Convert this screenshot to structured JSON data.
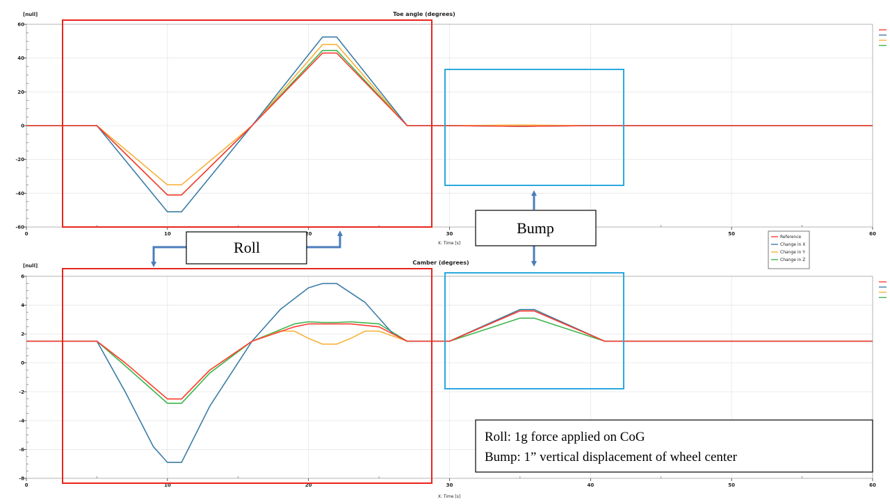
{
  "annotations": {
    "roll_label": "Roll",
    "bump_label": "Bump",
    "note_line1": "Roll:  1g force applied on CoG",
    "note_line2": "Bump: 1” vertical  displacement of wheel center"
  },
  "legend": {
    "items": [
      "Reference",
      "Change in X",
      "Change in Y",
      "Change in Z"
    ]
  },
  "colors": {
    "reference": "#ff3b2f",
    "change_x": "#3a7ca5",
    "change_y": "#f7b13a",
    "change_z": "#3cb44b",
    "roll_box": "#e8231b",
    "bump_box": "#29a8df",
    "arrow": "#4a7ebb"
  },
  "chart_data": [
    {
      "type": "line",
      "title": "Toe angle (degrees)",
      "ylabel": "[null]",
      "xlabel": "X: Time [s]",
      "xlim": [
        0,
        60
      ],
      "ylim": [
        -60,
        60
      ],
      "xticks": [
        0,
        10,
        20,
        30,
        40,
        50,
        60
      ],
      "yticks": [
        -60,
        -40,
        -20,
        0,
        20,
        40,
        60
      ],
      "grid": true,
      "legend_position": "top-right",
      "series": [
        {
          "name": "Reference",
          "color_key": "reference",
          "x": [
            0,
            5,
            10,
            11,
            16,
            21,
            22,
            27,
            30,
            35,
            40,
            60
          ],
          "y": [
            0,
            0,
            -41,
            -41,
            0,
            43,
            43,
            0,
            0,
            -0.4,
            0,
            0
          ]
        },
        {
          "name": "Change in X",
          "color_key": "change_x",
          "x": [
            0,
            5,
            10,
            11,
            16,
            21,
            22,
            27,
            30,
            35,
            40,
            60
          ],
          "y": [
            0,
            0,
            -51,
            -51,
            0,
            52.5,
            52.5,
            0,
            0,
            -0.4,
            0,
            0
          ]
        },
        {
          "name": "Change in Y",
          "color_key": "change_y",
          "x": [
            0,
            5,
            10,
            11,
            16,
            21,
            22,
            27,
            30,
            35,
            40,
            60
          ],
          "y": [
            0,
            0,
            -35,
            -35,
            0,
            48,
            48,
            0,
            0,
            0.4,
            0,
            0
          ]
        },
        {
          "name": "Change in Z",
          "color_key": "change_z",
          "x": [
            0,
            5,
            10,
            11,
            16,
            21,
            22,
            27,
            30,
            35,
            40,
            60
          ],
          "y": [
            0,
            0,
            -41,
            -41,
            0,
            44.5,
            44.5,
            0,
            0,
            -0.4,
            0,
            0
          ]
        }
      ]
    },
    {
      "type": "line",
      "title": "Camber (degrees)",
      "ylabel": "[null]",
      "xlabel": "X: Time [s]",
      "xlim": [
        0,
        60
      ],
      "ylim": [
        -8,
        6
      ],
      "xticks": [
        0,
        10,
        20,
        30,
        40,
        50,
        60
      ],
      "yticks": [
        -8,
        -6,
        -4,
        -2,
        0,
        2,
        4,
        6
      ],
      "grid": true,
      "legend_position": "top-right",
      "series": [
        {
          "name": "Reference",
          "color_key": "reference",
          "x": [
            0,
            5,
            7,
            10,
            11,
            13,
            16,
            19,
            20,
            21,
            22,
            23,
            25,
            27,
            30,
            35,
            36,
            41,
            60
          ],
          "y": [
            1.5,
            1.5,
            0,
            -2.5,
            -2.5,
            -0.5,
            1.5,
            2.5,
            2.7,
            2.7,
            2.7,
            2.7,
            2.5,
            1.5,
            1.5,
            3.6,
            3.6,
            1.5,
            1.5
          ]
        },
        {
          "name": "Change in X",
          "color_key": "change_x",
          "x": [
            0,
            5,
            7,
            9,
            10,
            11,
            13,
            16,
            18,
            20,
            21,
            22,
            24,
            26,
            27,
            30,
            35,
            36,
            41,
            60
          ],
          "y": [
            1.5,
            1.5,
            -2,
            -5.8,
            -6.9,
            -6.9,
            -3,
            1.5,
            3.7,
            5.2,
            5.5,
            5.5,
            4.2,
            2,
            1.5,
            1.5,
            3.7,
            3.7,
            1.5,
            1.5
          ]
        },
        {
          "name": "Change in Y",
          "color_key": "change_y",
          "x": [
            0,
            5,
            7,
            10,
            11,
            13,
            16,
            18,
            19,
            20,
            21,
            22,
            23,
            24,
            25,
            27,
            30,
            35,
            36,
            41,
            60
          ],
          "y": [
            1.5,
            1.5,
            0,
            -2.5,
            -2.5,
            -0.5,
            1.5,
            2.2,
            2.2,
            1.7,
            1.3,
            1.3,
            1.7,
            2.2,
            2.2,
            1.5,
            1.5,
            3.7,
            3.7,
            1.5,
            1.5
          ]
        },
        {
          "name": "Change in Z",
          "color_key": "change_z",
          "x": [
            0,
            5,
            7,
            10,
            11,
            13,
            16,
            19,
            20,
            21,
            22,
            23,
            25,
            27,
            30,
            35,
            36,
            41,
            60
          ],
          "y": [
            1.5,
            1.5,
            -0.2,
            -2.8,
            -2.8,
            -0.7,
            1.5,
            2.7,
            2.85,
            2.8,
            2.8,
            2.85,
            2.7,
            1.5,
            1.5,
            3.1,
            3.1,
            1.5,
            1.5
          ]
        }
      ]
    }
  ]
}
